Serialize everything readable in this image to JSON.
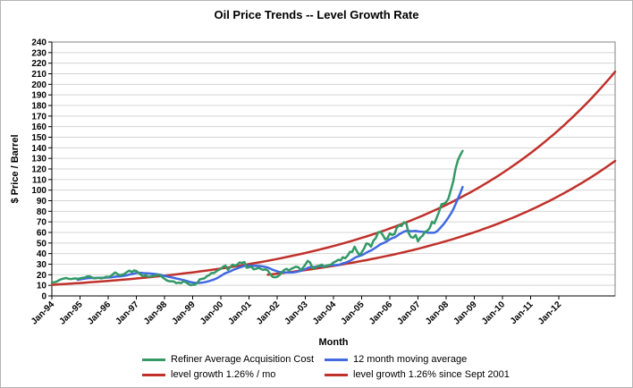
{
  "chart_data": {
    "type": "line",
    "title": "Oil Price Trends -- Level Growth Rate",
    "xlabel": "Month",
    "ylabel": "$ Price / Barrel",
    "ylim": [
      0,
      240
    ],
    "ytick_step": 10,
    "grid": "horizontal-only",
    "legend_position": "bottom",
    "x_axis": {
      "start_label": "Jan-94",
      "months_total": 240,
      "tick_every_months": 12,
      "tick_labels": [
        "Jan-94",
        "Jan-95",
        "Jan-96",
        "Jan-97",
        "Jan-98",
        "Jan-99",
        "Jan-00",
        "Jan-01",
        "Jan-02",
        "Jan-03",
        "Jan-04",
        "Jan-05",
        "Jan-06",
        "Jan-07",
        "Jan-08",
        "Jan-09",
        "Jan-10",
        "Jan-11",
        "Jan-12"
      ]
    },
    "series": [
      {
        "name": "Refiner Average Acquisition Cost",
        "color": "#339966",
        "kind": "monthly",
        "start_month": 0,
        "values": [
          12.5,
          12.9,
          13.4,
          14.8,
          15.8,
          16.4,
          16.9,
          16.3,
          15.9,
          16.3,
          16.6,
          16.1,
          16.6,
          17.1,
          17.3,
          18.3,
          18.6,
          17.6,
          16.6,
          16.9,
          17.1,
          16.6,
          17.1,
          18.1,
          17.9,
          18.4,
          20.6,
          22.1,
          20.6,
          19.6,
          20.1,
          20.9,
          22.6,
          23.9,
          22.6,
          24.1,
          23.6,
          21.6,
          19.9,
          18.6,
          19.6,
          18.1,
          18.4,
          18.9,
          18.9,
          20.1,
          19.6,
          17.9,
          16.1,
          14.6,
          13.9,
          13.9,
          13.6,
          12.1,
          12.6,
          12.1,
          13.6,
          13.1,
          11.6,
          10.1,
          10.6,
          10.6,
          12.6,
          15.6,
          16.1,
          16.6,
          18.6,
          19.6,
          21.6,
          21.6,
          23.1,
          24.6,
          25.6,
          27.6,
          28.6,
          24.6,
          27.1,
          29.6,
          28.6,
          29.6,
          31.6,
          31.1,
          32.1,
          26.6,
          27.1,
          27.6,
          25.1,
          25.6,
          26.6,
          25.6,
          24.6,
          25.1,
          24.1,
          20.6,
          18.1,
          17.6,
          18.1,
          19.6,
          22.6,
          24.6,
          25.6,
          24.1,
          25.6,
          26.6,
          27.6,
          27.1,
          24.6,
          26.6,
          29.6,
          33.1,
          31.6,
          26.6,
          26.1,
          28.1,
          28.6,
          29.6,
          27.1,
          28.6,
          29.1,
          29.6,
          31.6,
          32.6,
          34.1,
          33.6,
          36.6,
          35.6,
          38.1,
          41.6,
          41.6,
          46.6,
          42.1,
          38.6,
          41.1,
          44.6,
          49.6,
          49.1,
          46.6,
          52.1,
          54.6,
          60.1,
          60.6,
          57.6,
          53.6,
          54.6,
          59.1,
          57.6,
          58.6,
          64.6,
          66.6,
          66.1,
          69.6,
          68.6,
          59.6,
          55.6,
          55.1,
          57.6,
          51.6,
          55.1,
          57.1,
          60.6,
          61.6,
          64.1,
          70.1,
          68.6,
          74.1,
          79.6,
          86.6,
          87.1,
          88.6,
          92.1,
          100.1,
          108.1,
          120.1,
          128.1,
          133.1,
          137.1
        ]
      },
      {
        "name": "12 month moving average",
        "color": "#4169E1",
        "kind": "moving_average",
        "window": 12,
        "source": "Refiner Average Acquisition Cost"
      },
      {
        "name": "level growth 1.26% / mo",
        "color": "#C0312B",
        "kind": "exponential",
        "start_month": 0,
        "start_value": 10.5,
        "monthly_growth_pct": 1.26,
        "end_month": 240
      },
      {
        "name": "level growth 1.26% since Sept 2001",
        "color": "#C0312B",
        "kind": "exponential",
        "start_month": 92,
        "start_value": 20,
        "monthly_growth_pct": 1.26,
        "end_month": 240
      }
    ]
  }
}
